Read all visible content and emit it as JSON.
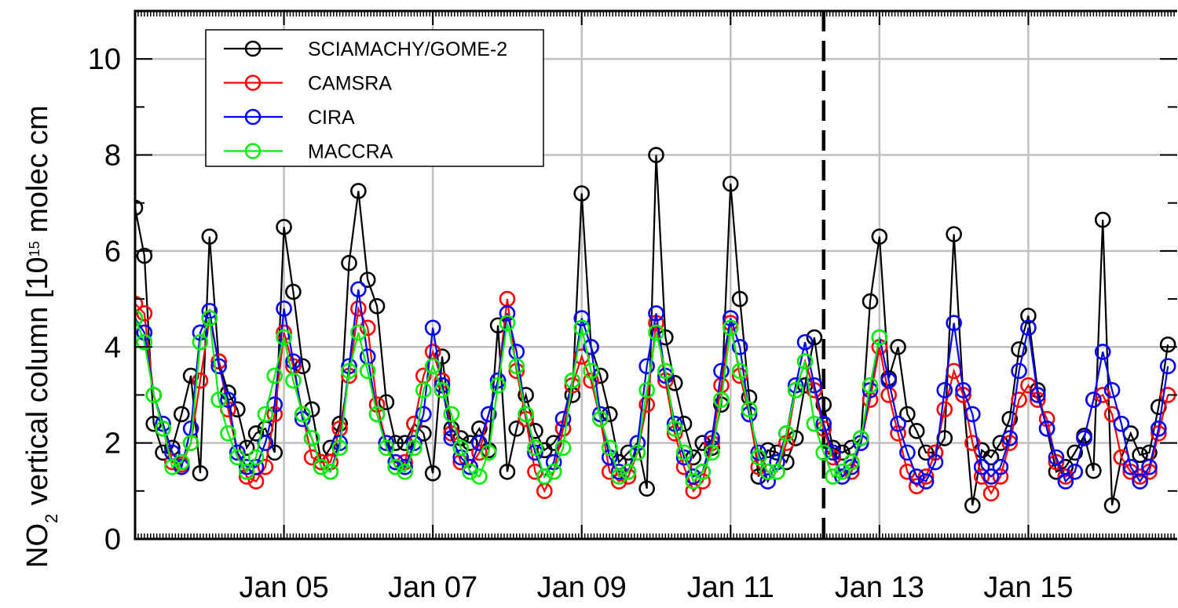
{
  "chart_data": {
    "type": "line",
    "y_label": [
      "NO",
      "2",
      " vertical column [10",
      "15",
      " molec cm"
    ],
    "xlim": [
      3,
      17
    ],
    "xticks": [
      {
        "value": 5,
        "label": "Jan 05"
      },
      {
        "value": 7,
        "label": "Jan 07"
      },
      {
        "value": 9,
        "label": "Jan 09"
      },
      {
        "value": 11,
        "label": "Jan 11"
      },
      {
        "value": 13,
        "label": "Jan 13"
      },
      {
        "value": 15,
        "label": "Jan 15"
      }
    ],
    "ylim": [
      0,
      11
    ],
    "yticks": [
      0,
      2,
      4,
      6,
      8,
      10
    ],
    "y_minor_ticks": [
      1,
      3,
      5,
      7,
      9
    ],
    "grid": true,
    "vline": 12.25,
    "legend": "upper-left",
    "x": [
      3,
      3.125,
      3.25,
      3.375,
      3.5,
      3.625,
      3.75,
      3.875,
      4,
      4.125,
      4.25,
      4.375,
      4.5,
      4.625,
      4.75,
      4.875,
      5,
      5.125,
      5.25,
      5.375,
      5.5,
      5.625,
      5.75,
      5.875,
      6,
      6.125,
      6.25,
      6.375,
      6.5,
      6.625,
      6.75,
      6.875,
      7,
      7.125,
      7.25,
      7.375,
      7.5,
      7.625,
      7.75,
      7.875,
      8,
      8.125,
      8.25,
      8.375,
      8.5,
      8.625,
      8.75,
      8.875,
      9,
      9.125,
      9.25,
      9.375,
      9.5,
      9.625,
      9.75,
      9.875,
      10,
      10.125,
      10.25,
      10.375,
      10.5,
      10.625,
      10.75,
      10.875,
      11,
      11.125,
      11.25,
      11.375,
      11.5,
      11.625,
      11.75,
      11.875,
      12,
      12.125,
      12.25,
      12.375,
      12.5,
      12.625,
      12.75,
      12.875,
      13,
      13.125,
      13.25,
      13.375,
      13.5,
      13.625,
      13.75,
      13.875,
      14,
      14.125,
      14.25,
      14.375,
      14.5,
      14.625,
      14.75,
      14.875,
      15,
      15.125,
      15.25,
      15.375,
      15.5,
      15.625,
      15.75,
      15.875,
      16,
      16.125,
      16.25,
      16.375,
      16.5,
      16.625,
      16.75,
      16.875
    ],
    "series": [
      {
        "name": "SCIAMACHY/GOME-2",
        "color": "#000000",
        "values": [
          6.9,
          5.9,
          2.4,
          1.8,
          1.9,
          2.6,
          3.4,
          1.37,
          6.3,
          3.7,
          3.05,
          2.7,
          1.9,
          2.2,
          2.3,
          1.8,
          6.5,
          5.15,
          3.6,
          2.7,
          1.6,
          1.9,
          2.4,
          5.75,
          7.25,
          5.4,
          4.85,
          2.85,
          2.0,
          2.0,
          2.4,
          2.2,
          1.37,
          3.8,
          2.3,
          2.1,
          2.0,
          2.3,
          1.85,
          4.45,
          1.4,
          2.3,
          3.0,
          2.25,
          1.85,
          2.0,
          2.3,
          3.0,
          7.2,
          4.0,
          3.4,
          2.6,
          1.6,
          1.8,
          2.0,
          1.05,
          8.0,
          4.2,
          3.25,
          2.4,
          1.7,
          2.0,
          1.9,
          2.8,
          7.4,
          5.0,
          2.95,
          1.3,
          1.85,
          1.8,
          1.6,
          2.1,
          3.2,
          4.2,
          2.8,
          1.9,
          1.8,
          1.9,
          2.1,
          4.95,
          6.3,
          3.35,
          4.0,
          2.6,
          2.25,
          1.8,
          1.8,
          2.1,
          6.35,
          3.0,
          0.7,
          1.85,
          1.7,
          2.0,
          2.5,
          3.95,
          4.65,
          3.1,
          2.3,
          1.4,
          1.5,
          1.8,
          2.15,
          1.42,
          6.65,
          0.7,
          1.7,
          2.2,
          1.75,
          1.8,
          2.75,
          4.05
        ]
      },
      {
        "name": "CAMSRA",
        "color": "#ff0000",
        "values": [
          4.9,
          4.7,
          3.0,
          2.3,
          1.6,
          1.55,
          2.0,
          3.3,
          4.6,
          3.7,
          2.7,
          1.8,
          1.3,
          1.2,
          1.5,
          2.6,
          4.3,
          3.6,
          2.6,
          1.7,
          1.6,
          1.6,
          2.3,
          3.4,
          4.8,
          4.4,
          2.8,
          2.0,
          1.5,
          1.6,
          2.4,
          3.4,
          3.9,
          3.3,
          2.2,
          1.6,
          1.5,
          1.8,
          2.6,
          3.3,
          5.0,
          3.5,
          2.5,
          1.4,
          1.0,
          1.4,
          2.3,
          3.2,
          3.8,
          3.3,
          2.5,
          1.4,
          1.2,
          1.3,
          1.8,
          2.8,
          4.5,
          3.3,
          2.2,
          1.5,
          1.0,
          1.2,
          2.0,
          3.2,
          4.5,
          3.4,
          2.6,
          1.5,
          1.4,
          1.4,
          2.0,
          3.1,
          3.7,
          3.1,
          2.3,
          1.7,
          1.3,
          1.4,
          2.0,
          2.9,
          4.0,
          3.0,
          2.2,
          1.4,
          1.1,
          1.3,
          1.8,
          2.7,
          3.5,
          3.0,
          2.0,
          1.3,
          0.95,
          1.3,
          2.0,
          2.9,
          3.2,
          2.9,
          2.5,
          1.6,
          1.3,
          1.4,
          2.1,
          2.9,
          3.0,
          2.6,
          1.7,
          1.4,
          1.3,
          1.4,
          2.2,
          3.0
        ]
      },
      {
        "name": "CIRA",
        "color": "#0000ff",
        "values": [
          4.6,
          4.3,
          3.0,
          2.4,
          1.8,
          1.5,
          2.3,
          4.3,
          4.75,
          3.6,
          2.9,
          1.8,
          1.5,
          1.5,
          2.0,
          2.8,
          4.8,
          3.7,
          2.5,
          2.1,
          1.5,
          1.4,
          2.0,
          3.6,
          5.2,
          3.8,
          2.6,
          2.0,
          1.6,
          1.5,
          2.0,
          2.6,
          4.4,
          3.2,
          2.1,
          1.7,
          1.5,
          2.0,
          2.6,
          3.3,
          4.7,
          3.9,
          2.6,
          1.8,
          1.3,
          1.6,
          2.5,
          3.3,
          4.6,
          4.0,
          2.6,
          1.7,
          1.4,
          1.4,
          2.0,
          3.6,
          4.7,
          3.4,
          2.4,
          1.7,
          1.3,
          1.4,
          2.1,
          3.5,
          4.6,
          4.0,
          2.6,
          1.8,
          1.2,
          1.6,
          2.2,
          3.2,
          4.1,
          3.2,
          2.4,
          1.8,
          1.3,
          1.5,
          2.0,
          3.1,
          4.2,
          3.3,
          2.4,
          1.8,
          1.3,
          1.2,
          1.6,
          3.1,
          4.5,
          3.1,
          2.6,
          1.5,
          1.3,
          1.5,
          2.1,
          3.5,
          4.4,
          3.0,
          2.3,
          1.7,
          1.2,
          1.4,
          2.1,
          2.9,
          3.9,
          3.1,
          2.4,
          1.5,
          1.2,
          1.5,
          2.3,
          3.6
        ]
      },
      {
        "name": "MACCRA",
        "color": "#00ee00",
        "values": [
          4.6,
          4.1,
          3.0,
          2.3,
          1.5,
          1.6,
          2.0,
          4.1,
          4.6,
          2.9,
          2.2,
          1.7,
          1.4,
          1.7,
          2.6,
          3.4,
          4.2,
          3.3,
          2.6,
          2.1,
          1.5,
          1.4,
          1.9,
          3.5,
          4.3,
          3.5,
          2.6,
          1.9,
          1.5,
          1.4,
          1.9,
          3.1,
          3.6,
          3.1,
          2.6,
          1.9,
          1.4,
          1.3,
          1.8,
          3.2,
          4.5,
          3.6,
          2.6,
          1.9,
          1.3,
          1.4,
          1.9,
          3.3,
          4.4,
          3.5,
          2.5,
          1.9,
          1.3,
          1.4,
          1.8,
          3.1,
          4.3,
          3.5,
          2.3,
          1.8,
          1.2,
          1.4,
          1.8,
          2.9,
          4.4,
          3.5,
          2.7,
          1.7,
          1.4,
          1.4,
          2.2,
          3.1,
          3.7,
          2.4,
          1.8,
          1.3,
          1.4,
          1.6,
          2.1,
          3.2,
          4.2,
          null,
          null,
          null,
          null,
          null,
          null,
          null,
          null,
          null,
          null,
          null,
          null,
          null,
          null,
          null,
          null,
          null,
          null,
          null,
          null,
          null,
          null,
          null,
          null,
          null,
          null,
          null,
          null,
          null,
          null,
          null
        ]
      }
    ]
  }
}
